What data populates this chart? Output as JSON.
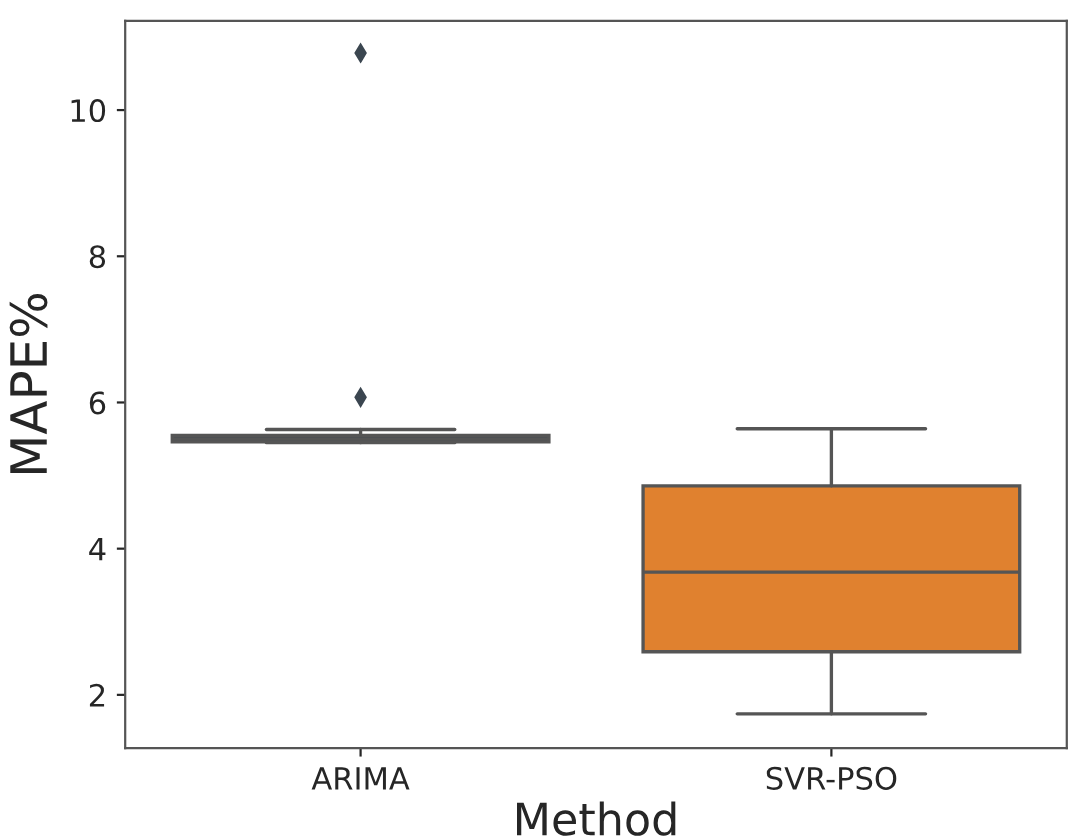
{
  "chart_data": {
    "type": "box",
    "xlabel": "Method",
    "ylabel": "MAPE%",
    "categories": [
      "ARIMA",
      "SVR-PSO"
    ],
    "colors": [
      "#3b4650",
      "#e0812f"
    ],
    "boxes": [
      {
        "low": 5.45,
        "q1": 5.46,
        "median": 5.5,
        "q3": 5.55,
        "high": 5.63,
        "outliers": [
          6.07,
          10.78
        ]
      },
      {
        "low": 1.74,
        "q1": 2.59,
        "median": 3.68,
        "q3": 4.86,
        "high": 5.64
      }
    ],
    "ylim": [
      1.27,
      11.22
    ],
    "yticks": [
      2,
      4,
      6,
      8,
      10
    ],
    "grid": false,
    "legend": false
  }
}
